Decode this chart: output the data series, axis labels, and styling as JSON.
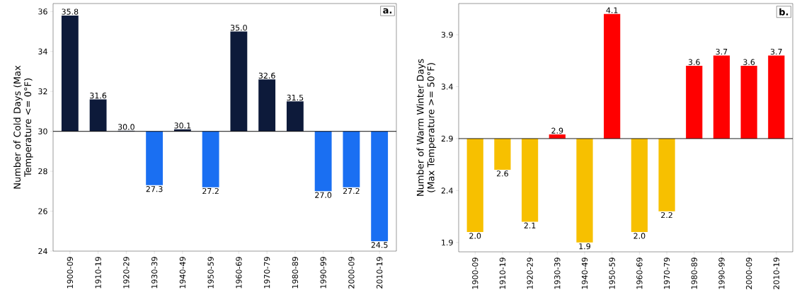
{
  "chart_data": [
    {
      "type": "bar",
      "ylabel": "Number of Cold Days (Max Temperature <= 0°F)",
      "annotations": [
        "a."
      ],
      "categories": [
        "1900-09",
        "1910-19",
        "1920-29",
        "1930-39",
        "1940-49",
        "1950-59",
        "1960-69",
        "1970-79",
        "1980-89",
        "1990-99",
        "2000-09",
        "2010-19"
      ],
      "base": [
        30,
        30,
        30,
        30,
        30,
        30,
        30,
        30,
        30,
        30,
        30,
        30
      ],
      "values": [
        5.8,
        1.6,
        0.03,
        -2.7,
        0.1,
        -2.8,
        5.0,
        2.6,
        1.5,
        -3.0,
        -2.8,
        -5.5
      ],
      "value_labels": [
        "35.8",
        "31.6",
        "30.0",
        "27.3",
        "30.1",
        "27.2",
        "35.0",
        "32.6",
        "31.5",
        "27.0",
        "27.2",
        "24.5"
      ],
      "colors": [
        "#0d1a3a",
        "#0d1a3a",
        "#0d1a3a",
        "#1a6ff2",
        "#0d1a3a",
        "#1a6ff2",
        "#0d1a3a",
        "#0d1a3a",
        "#0d1a3a",
        "#1a6ff2",
        "#1a6ff2",
        "#1a6ff2"
      ],
      "ylim": [
        24,
        36.4
      ],
      "yticks": [
        24,
        26,
        28,
        30,
        32,
        34,
        36
      ],
      "ref_lines": [
        {
          "axis": "y",
          "value": 30,
          "color": "#000000"
        }
      ]
    },
    {
      "type": "bar",
      "ylabel": "Number of Warm Winter Days (Max Temperature >= 50°F)",
      "annotations": [
        "b."
      ],
      "categories": [
        "1900-09",
        "1910-19",
        "1920-29",
        "1930-39",
        "1940-49",
        "1950-59",
        "1960-69",
        "1970-79",
        "1980-89",
        "1990-99",
        "2000-09",
        "2010-19"
      ],
      "base": [
        2.9,
        2.9,
        2.9,
        2.9,
        2.9,
        2.9,
        2.9,
        2.9,
        2.9,
        2.9,
        2.9,
        2.9
      ],
      "values": [
        -0.9,
        -0.3,
        -0.8,
        0.04,
        -1.0,
        1.2,
        -0.9,
        -0.7,
        0.7,
        0.8,
        0.7,
        0.8
      ],
      "value_labels": [
        "2.0",
        "2.6",
        "2.1",
        "2.9",
        "1.9",
        "4.1",
        "2.0",
        "2.2",
        "3.6",
        "3.7",
        "3.6",
        "3.7"
      ],
      "colors": [
        "#f7c000",
        "#f7c000",
        "#f7c000",
        "#ff0000",
        "#f7c000",
        "#ff0000",
        "#f7c000",
        "#f7c000",
        "#ff0000",
        "#ff0000",
        "#ff0000",
        "#ff0000"
      ],
      "ylim": [
        1.81,
        4.2
      ],
      "yticks": [
        1.9,
        2.4,
        2.9,
        3.4,
        3.9
      ],
      "ref_lines": [
        {
          "axis": "y",
          "value": 2.9,
          "color": "#000000"
        }
      ]
    }
  ]
}
